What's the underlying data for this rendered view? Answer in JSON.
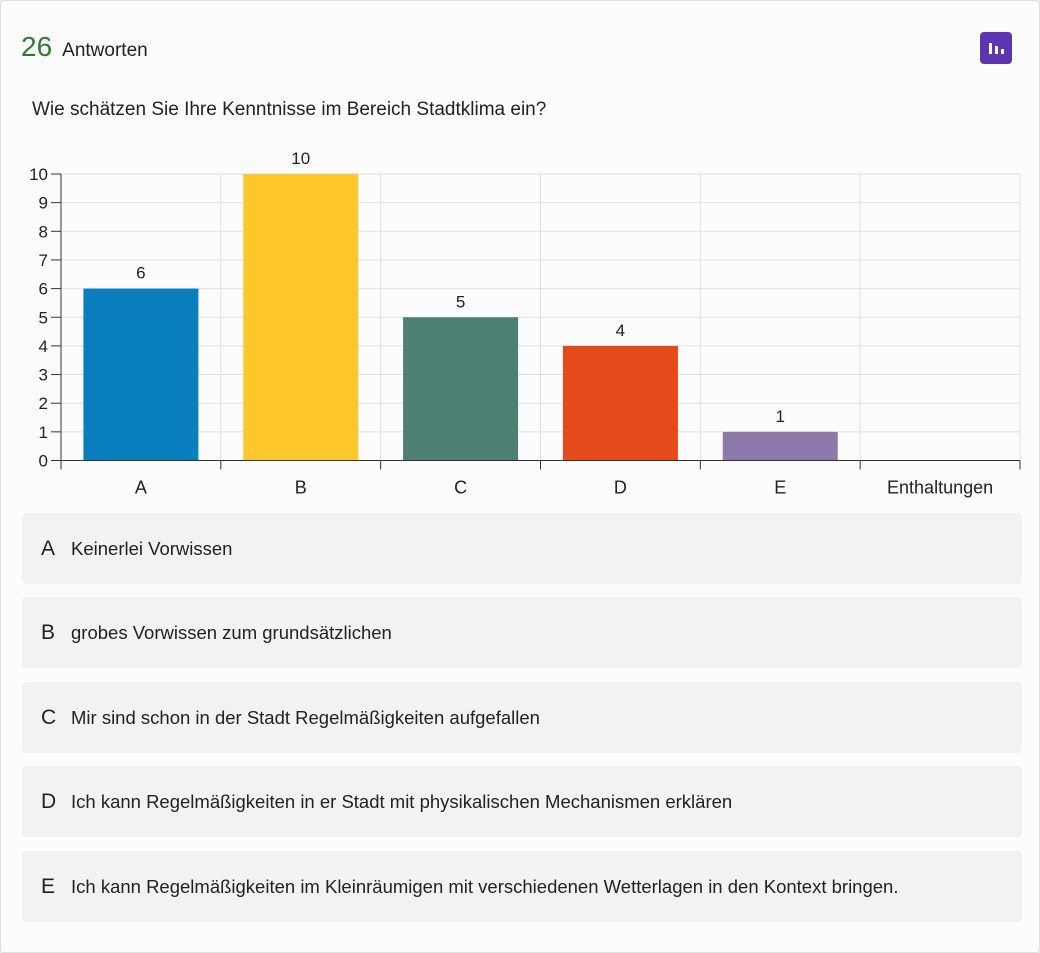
{
  "header": {
    "count": "26",
    "count_label": "Antworten",
    "icon": "bar-chart-icon",
    "icon_color": "#5e35b1"
  },
  "question": "Wie schätzen Sie Ihre Kenntnisse im Bereich Stadtklima ein?",
  "chart_data": {
    "type": "bar",
    "categories": [
      "A",
      "B",
      "C",
      "D",
      "E",
      "Enthaltungen"
    ],
    "values": [
      6,
      10,
      5,
      4,
      1,
      0
    ],
    "value_labels": [
      "6",
      "10",
      "5",
      "4",
      "1",
      ""
    ],
    "colors": [
      "#0a7fbd",
      "#fec82c",
      "#4e7f75",
      "#e54a1a",
      "#8e79ab",
      "#cccccc"
    ],
    "ylim": [
      0,
      10
    ],
    "yticks": [
      0,
      1,
      2,
      3,
      4,
      5,
      6,
      7,
      8,
      9,
      10
    ],
    "grid": true,
    "title": "",
    "xlabel": "",
    "ylabel": ""
  },
  "options": [
    {
      "key": "A",
      "text": "Keinerlei Vorwissen"
    },
    {
      "key": "B",
      "text": "grobes Vorwissen zum grundsätzlichen"
    },
    {
      "key": "C",
      "text": "Mir sind schon in der Stadt Regelmäßigkeiten aufgefallen"
    },
    {
      "key": "D",
      "text": "Ich kann Regelmäßigkeiten in er Stadt mit physikalischen Mechanismen erklären"
    },
    {
      "key": "E",
      "text": "Ich kann Regelmäßigkeiten im Kleinräumigen mit verschiedenen Wetterlagen in den Kontext bringen."
    }
  ]
}
